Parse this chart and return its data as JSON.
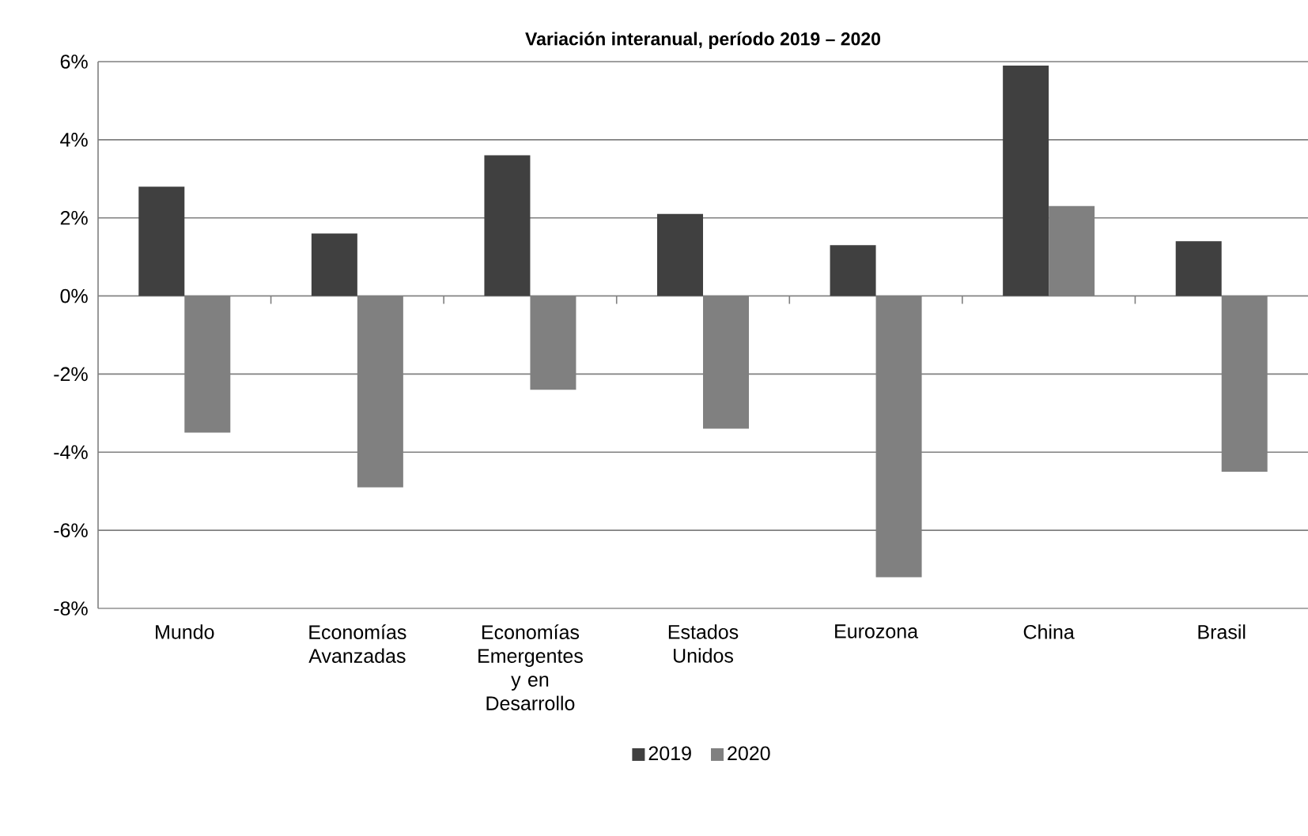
{
  "chart_data": {
    "type": "bar",
    "title": "Variación interanual, período 2019 – 2020",
    "categories": [
      "Mundo",
      "Economías Avanzadas",
      "Economías Emergentes y en Desarrollo",
      "Estados Unidos",
      "Eurozona",
      "China",
      "Brasil"
    ],
    "series": [
      {
        "name": "2019",
        "color": "#404040",
        "values": [
          2.8,
          1.6,
          3.6,
          2.1,
          1.3,
          5.9,
          1.4
        ]
      },
      {
        "name": "2020",
        "color": "#808080",
        "values": [
          -3.5,
          -4.9,
          -2.4,
          -3.4,
          -7.2,
          2.3,
          -4.5
        ]
      }
    ],
    "ylim": [
      -8,
      6
    ],
    "yticks": [
      {
        "value": -8,
        "label": "-8%"
      },
      {
        "value": -6,
        "label": "-6%"
      },
      {
        "value": -4,
        "label": "-4%"
      },
      {
        "value": -2,
        "label": "-2%"
      },
      {
        "value": 0,
        "label": "0%"
      },
      {
        "value": 2,
        "label": "2%"
      },
      {
        "value": 4,
        "label": "4%"
      },
      {
        "value": 6,
        "label": "6%"
      }
    ],
    "grid": "y",
    "legend": "bottom"
  }
}
